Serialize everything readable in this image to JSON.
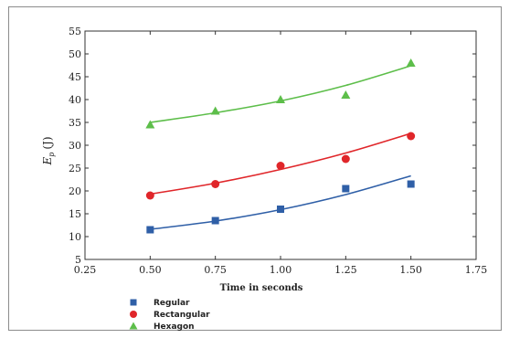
{
  "chart_data": {
    "type": "scatter",
    "xlabel": "Time in seconds",
    "ylabel": "E",
    "ylabel_sub": "p",
    "ylabel_unit": "(J)",
    "xlim": [
      0.25,
      1.75
    ],
    "ylim": [
      5,
      55
    ],
    "x_ticks": [
      "0.25",
      "0.50",
      "0.75",
      "1.00",
      "1.25",
      "1.50",
      "1.75"
    ],
    "y_ticks": [
      "5",
      "10",
      "15",
      "20",
      "25",
      "30",
      "35",
      "40",
      "45",
      "50",
      "55"
    ],
    "grid": false,
    "legend_position": "bottom-left",
    "series": [
      {
        "name": "Regular",
        "marker": "square",
        "color": "#2f5fa7",
        "points": [
          [
            0.5,
            11.5
          ],
          [
            0.75,
            13.5
          ],
          [
            1.0,
            16.0
          ],
          [
            1.25,
            20.5
          ],
          [
            1.5,
            21.5
          ]
        ],
        "fit": [
          [
            0.5,
            11.6
          ],
          [
            0.75,
            13.4
          ],
          [
            1.0,
            15.9
          ],
          [
            1.25,
            19.2
          ],
          [
            1.5,
            23.3
          ]
        ]
      },
      {
        "name": "Rectangular",
        "marker": "circle",
        "color": "#e0262a",
        "points": [
          [
            0.5,
            19.0
          ],
          [
            0.75,
            21.5
          ],
          [
            1.0,
            25.5
          ],
          [
            1.25,
            27.0
          ],
          [
            1.5,
            32.0
          ]
        ],
        "fit": [
          [
            0.5,
            19.3
          ],
          [
            0.75,
            21.7
          ],
          [
            1.0,
            24.7
          ],
          [
            1.25,
            28.3
          ],
          [
            1.5,
            32.6
          ]
        ]
      },
      {
        "name": "Hexagon",
        "marker": "triangle",
        "color": "#5dbe4a",
        "points": [
          [
            0.5,
            34.5
          ],
          [
            0.75,
            37.5
          ],
          [
            1.0,
            40.0
          ],
          [
            1.25,
            41.0
          ],
          [
            1.5,
            48.0
          ]
        ],
        "fit": [
          [
            0.5,
            35.0
          ],
          [
            0.75,
            37.1
          ],
          [
            1.0,
            39.7
          ],
          [
            1.25,
            43.1
          ],
          [
            1.5,
            47.4
          ]
        ]
      }
    ]
  }
}
